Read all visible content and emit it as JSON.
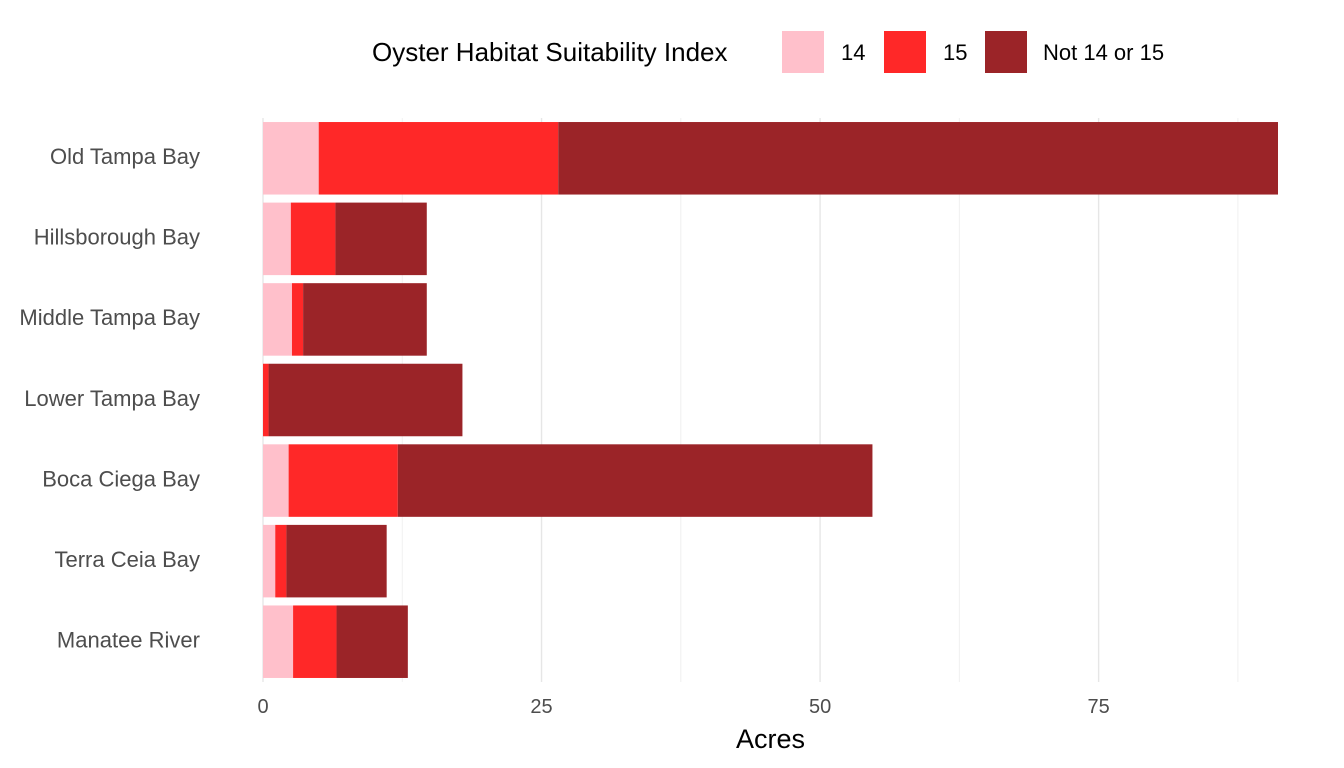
{
  "chart_data": {
    "type": "bar",
    "orientation": "horizontal",
    "stacked": true,
    "legend": {
      "title": "Oyster Habitat Suitability Index",
      "position": "top"
    },
    "categories": [
      "Old Tampa Bay",
      "Hillsborough Bay",
      "Middle Tampa Bay",
      "Lower Tampa Bay",
      "Boca Ciega Bay",
      "Terra Ceia Bay",
      "Manatee River"
    ],
    "series": [
      {
        "name": "14",
        "color": "#ffc0cb",
        "values": [
          5.0,
          2.5,
          2.6,
          0.0,
          2.3,
          1.1,
          2.7
        ]
      },
      {
        "name": "15",
        "color": "#ff2828",
        "values": [
          21.5,
          4.0,
          1.0,
          0.5,
          9.8,
          1.0,
          3.9
        ]
      },
      {
        "name": "Not 14 or 15",
        "color": "#9b2428",
        "values": [
          64.6,
          8.2,
          11.1,
          17.4,
          42.6,
          9.0,
          6.4
        ]
      }
    ],
    "xlabel": "Acres",
    "ylabel": "",
    "xticks": [
      "0",
      "25",
      "50",
      "75"
    ],
    "xlim": [
      0,
      91.1
    ],
    "grid": true
  }
}
